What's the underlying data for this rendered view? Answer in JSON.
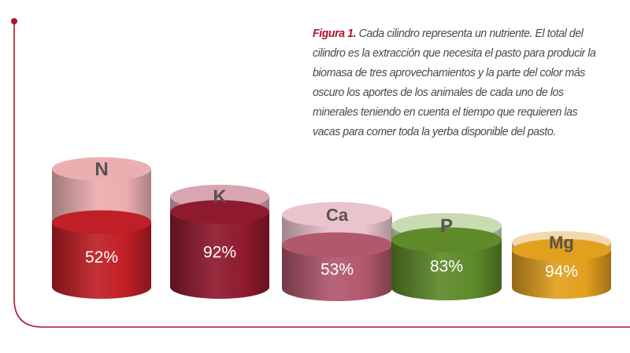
{
  "caption": {
    "figure_label": "Figura 1.",
    "text": "Cada cilindro representa un nutriente. El total del cilindro es la extracción que necesita el pasto para producir la biomasa de tres aprovechamientos y la parte del color más oscuro los aportes de los animales de cada uno de los minerales teniendo en cuenta el tiempo que requieren las vacas para comer toda la yerba disponible del pasto."
  },
  "chart_data": {
    "type": "bar",
    "style": "3d-cylinder",
    "categories": [
      "N",
      "K",
      "Ca",
      "P",
      "Mg"
    ],
    "values": [
      52,
      92,
      53,
      83,
      94
    ],
    "value_labels": [
      "52%",
      "92%",
      "53%",
      "83%",
      "94%"
    ],
    "title": "",
    "xlabel": "",
    "ylabel": "",
    "colors": {
      "N": {
        "dark": "#c01f25",
        "light": "#e8a4a6"
      },
      "K": {
        "dark": "#8f1a2e",
        "light": "#d39aa5"
      },
      "Ca": {
        "dark": "#b2586d",
        "light": "#e7bcc6"
      },
      "P": {
        "dark": "#5e8a2a",
        "light": "#c2d6a6"
      },
      "Mg": {
        "dark": "#e1a01e",
        "light": "#f0d4a0"
      }
    }
  },
  "colors": {
    "frame": "#b0142a"
  }
}
